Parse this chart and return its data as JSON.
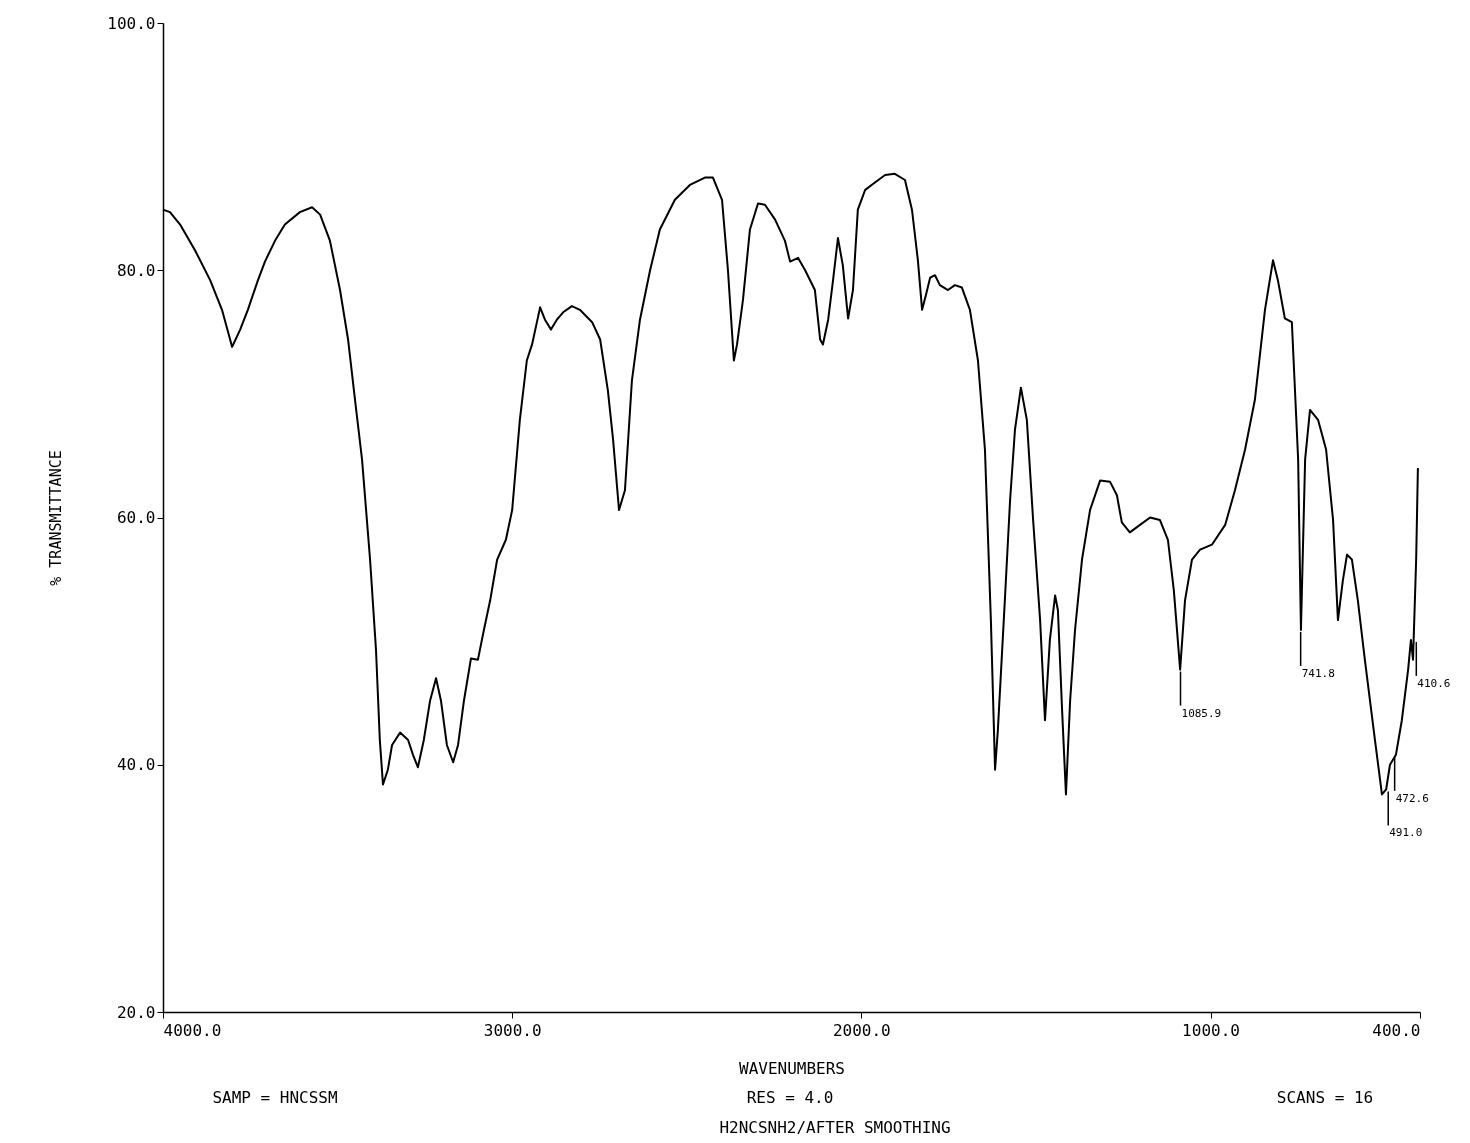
{
  "chart_data": {
    "type": "line",
    "xlabel": "WAVENUMBERS",
    "ylabel": "% TRANSMITTANCE",
    "color": "#000000",
    "line_style": "solid",
    "xlim": [
      4000,
      400
    ],
    "ylim": [
      20,
      100
    ],
    "xticks": [
      {
        "value": 4000,
        "label": "4000.0"
      },
      {
        "value": 3000,
        "label": "3000.0"
      },
      {
        "value": 2000,
        "label": "2000.0"
      },
      {
        "value": 1000,
        "label": "1000.0"
      },
      {
        "value": 400,
        "label": "400.0"
      }
    ],
    "yticks": [
      {
        "value": 20,
        "label": "20.0"
      },
      {
        "value": 40,
        "label": "40.0"
      },
      {
        "value": 60,
        "label": "60.0"
      },
      {
        "value": 80,
        "label": "80.0"
      },
      {
        "value": 100,
        "label": "100.0"
      }
    ],
    "x": [
      4000,
      3980,
      3951,
      3908,
      3865,
      3831,
      3802,
      3779,
      3757,
      3728,
      3708,
      3679,
      3651,
      3608,
      3573,
      3550,
      3522,
      3493,
      3470,
      3450,
      3430,
      3407,
      3390,
      3379,
      3370,
      3356,
      3344,
      3321,
      3298,
      3284,
      3270,
      3253,
      3235,
      3218,
      3204,
      3187,
      3169,
      3155,
      3138,
      3118,
      3098,
      3081,
      3063,
      3043,
      3018,
      3000,
      2978,
      2958,
      2943,
      2920,
      2906,
      2889,
      2872,
      2854,
      2829,
      2806,
      2771,
      2748,
      2726,
      2711,
      2694,
      2677,
      2657,
      2634,
      2605,
      2577,
      2534,
      2491,
      2448,
      2425,
      2399,
      2382,
      2365,
      2356,
      2339,
      2319,
      2296,
      2276,
      2247,
      2219,
      2204,
      2181,
      2161,
      2133,
      2118,
      2110,
      2095,
      2081,
      2067,
      2053,
      2038,
      2024,
      2010,
      1989,
      1961,
      1932,
      1904,
      1875,
      1855,
      1838,
      1826,
      1815,
      1803,
      1789,
      1775,
      1752,
      1732,
      1712,
      1689,
      1666,
      1646,
      1629,
      1617,
      1609,
      1589,
      1574,
      1560,
      1543,
      1526,
      1508,
      1488,
      1474,
      1460,
      1445,
      1437,
      1425,
      1414,
      1402,
      1388,
      1368,
      1345,
      1316,
      1288,
      1268,
      1254,
      1231,
      1202,
      1173,
      1145,
      1122,
      1105,
      1087,
      1073,
      1053,
      1030,
      996,
      958,
      930,
      901,
      873,
      844,
      821,
      807,
      787,
      767,
      749,
      741,
      729,
      715,
      692,
      669,
      649,
      635,
      621,
      609,
      595,
      578,
      558,
      529,
      509,
      497,
      486,
      469,
      452,
      434,
      426,
      420,
      411,
      406
    ],
    "values": [
      84.9,
      84.7,
      83.7,
      81.6,
      79.2,
      76.8,
      73.8,
      75.2,
      76.8,
      79.2,
      80.7,
      82.4,
      83.7,
      84.7,
      85.1,
      84.5,
      82.4,
      78.4,
      74.4,
      69.5,
      64.7,
      56.6,
      49.3,
      42.0,
      38.4,
      39.6,
      41.6,
      42.6,
      42.0,
      40.8,
      39.8,
      42.0,
      45.2,
      47.0,
      45.2,
      41.6,
      40.2,
      41.6,
      45.2,
      48.6,
      48.5,
      50.9,
      53.3,
      56.6,
      58.2,
      60.6,
      67.9,
      72.7,
      74.0,
      77.0,
      76.0,
      75.2,
      76.0,
      76.6,
      77.1,
      76.8,
      75.8,
      74.4,
      70.3,
      66.3,
      60.6,
      62.2,
      71.1,
      76.0,
      80.0,
      83.3,
      85.7,
      86.9,
      87.5,
      87.5,
      85.7,
      80.0,
      72.7,
      74.0,
      77.6,
      83.3,
      85.4,
      85.3,
      84.1,
      82.4,
      80.7,
      81.0,
      80.0,
      78.4,
      74.4,
      74.0,
      76.0,
      79.2,
      82.6,
      80.4,
      76.1,
      78.4,
      84.9,
      86.5,
      87.1,
      87.7,
      87.8,
      87.3,
      84.9,
      80.8,
      76.8,
      78.0,
      79.4,
      79.6,
      78.8,
      78.4,
      78.8,
      78.6,
      76.8,
      72.7,
      65.5,
      51.7,
      39.6,
      42.8,
      53.3,
      61.4,
      67.1,
      70.5,
      67.9,
      59.8,
      51.7,
      43.6,
      50.1,
      53.7,
      52.5,
      44.4,
      37.6,
      45.2,
      50.9,
      56.6,
      60.6,
      63.0,
      62.9,
      61.8,
      59.6,
      58.8,
      59.4,
      60.0,
      59.8,
      58.2,
      54.1,
      47.7,
      53.3,
      56.6,
      57.4,
      57.8,
      59.4,
      62.2,
      65.5,
      69.5,
      76.8,
      80.8,
      79.2,
      76.1,
      75.8,
      64.7,
      50.9,
      64.7,
      68.7,
      67.9,
      65.5,
      59.8,
      51.7,
      54.9,
      57.0,
      56.6,
      53.3,
      48.5,
      42.0,
      37.6,
      38.0,
      40.0,
      40.8,
      43.6,
      47.7,
      50.1,
      48.5,
      56.6,
      64.0
    ],
    "annotations": [
      "SAMP = HNCSSM",
      "RES = 4.0",
      "SCANS = 16",
      "H2NCSNH2/AFTER SMOOTHING",
      {
        "text": "1085.9",
        "x": 1085.9,
        "y": 47.7
      },
      {
        "text": "741.8",
        "x": 741.8,
        "y": 50.9
      },
      {
        "text": "491.0",
        "x": 491.0,
        "y": 38.0
      },
      {
        "text": "472.6",
        "x": 472.6,
        "y": 40.8
      },
      {
        "text": "410.6",
        "x": 410.6,
        "y": 50.1
      }
    ]
  }
}
